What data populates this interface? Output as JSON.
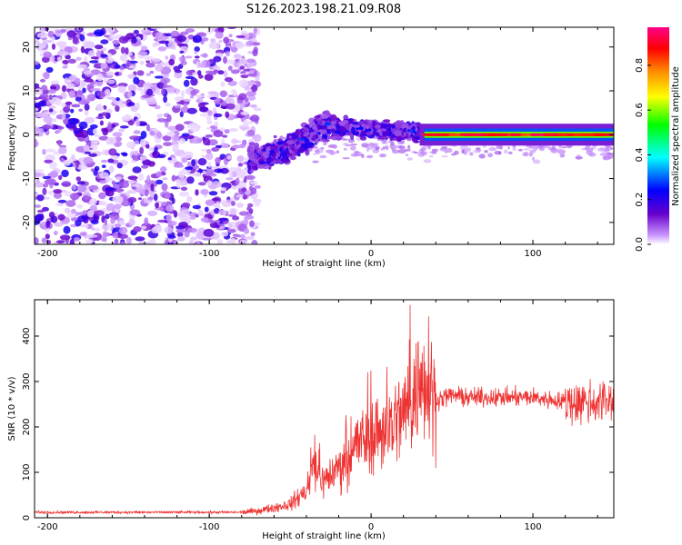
{
  "title": "S126.2023.198.21.09.R08",
  "chart_data": [
    {
      "type": "heatmap",
      "xlabel": "Height of straight line (km)",
      "ylabel": "Frequency (Hz)",
      "xlim": [
        -208,
        150
      ],
      "ylim": [
        -25,
        24.5
      ],
      "x_ticks": [
        -200,
        -100,
        0,
        100
      ],
      "y_ticks": [
        -20,
        -10,
        0,
        10,
        20
      ],
      "colorbar": {
        "label": "Normalized spectral amplitude",
        "range": [
          0,
          0.97
        ],
        "ticks": [
          "0.0",
          "0.2",
          "0.4",
          "0.6",
          "0.8"
        ],
        "stops": [
          "#ffffff",
          "#cc99ff",
          "#6600cc",
          "#0000ff",
          "#00ffff",
          "#00ff00",
          "#ffff00",
          "#ff8800",
          "#ff0000",
          "#ff0088"
        ]
      },
      "features": {
        "noise_region_x": [
          -208,
          -78
        ],
        "drifting_signal": [
          {
            "x": -75,
            "y": -5.5
          },
          {
            "x": -55,
            "y": -4
          },
          {
            "x": -40,
            "y": -1
          },
          {
            "x": -30,
            "y": 2
          },
          {
            "x": -10,
            "y": 1.5
          },
          {
            "x": 10,
            "y": 1
          },
          {
            "x": 30,
            "y": 0.5
          }
        ],
        "steady_tone": {
          "x_start": 33,
          "x_end": 150,
          "frequency": 0,
          "peak_amplitude": 0.97
        }
      }
    },
    {
      "type": "line",
      "xlabel": "Height of straight line (km)",
      "ylabel": "SNR (10 * v/v)",
      "xlim": [
        -208,
        150
      ],
      "ylim": [
        0,
        480
      ],
      "x_ticks": [
        -200,
        -100,
        0,
        100
      ],
      "y_ticks": [
        0,
        100,
        200,
        300,
        400
      ],
      "line_color": "#ee3333",
      "series": [
        {
          "x": [
            -208,
            -80,
            -70,
            -50,
            -40,
            -35,
            -30,
            -20,
            -10,
            0,
            10,
            20,
            30,
            35,
            40,
            50,
            60,
            80,
            100,
            120,
            140,
            150
          ],
          "y": [
            12,
            12,
            15,
            30,
            60,
            120,
            80,
            110,
            160,
            180,
            200,
            230,
            290,
            330,
            260,
            270,
            265,
            265,
            265,
            255,
            255,
            260
          ]
        }
      ]
    }
  ]
}
